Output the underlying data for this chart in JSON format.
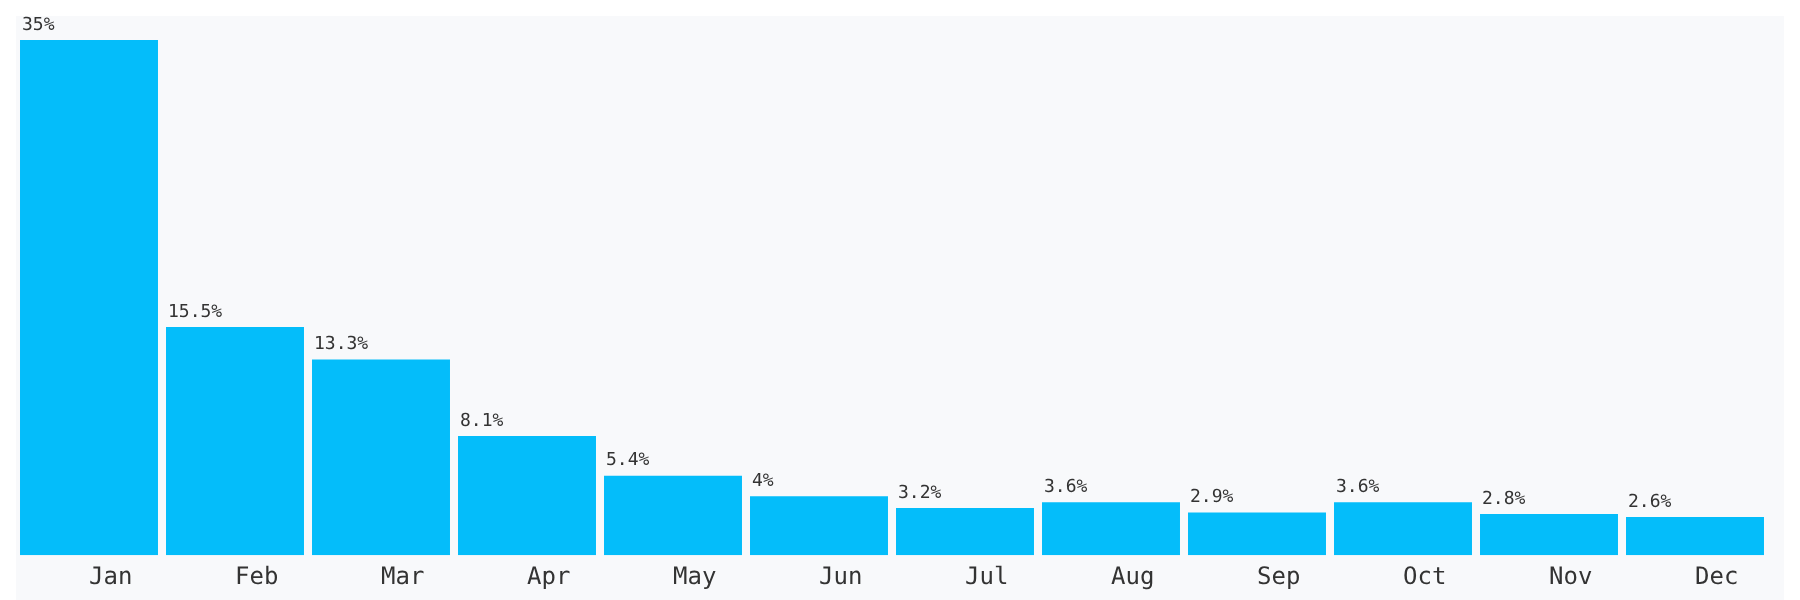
{
  "chart_data": {
    "type": "bar",
    "categories": [
      "Jan",
      "Feb",
      "Mar",
      "Apr",
      "May",
      "Jun",
      "Jul",
      "Aug",
      "Sep",
      "Oct",
      "Nov",
      "Dec"
    ],
    "values": [
      35,
      15.5,
      13.3,
      8.1,
      5.4,
      4,
      3.2,
      3.6,
      2.9,
      3.6,
      2.8,
      2.6
    ],
    "value_labels": [
      "35%",
      "15.5%",
      "13.3%",
      "8.1%",
      "5.4%",
      "4%",
      "3.2%",
      "3.6%",
      "2.9%",
      "3.6%",
      "2.8%",
      "2.6%"
    ],
    "color": "#04bdfa",
    "grid": false,
    "legend": false
  }
}
